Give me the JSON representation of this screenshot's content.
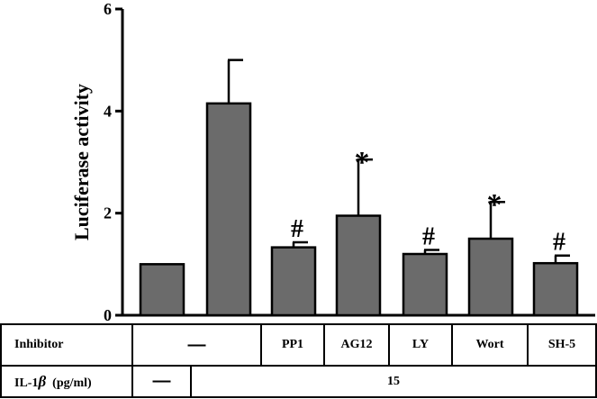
{
  "chart_data": {
    "type": "bar",
    "ylabel": "Luciferase activity",
    "ylim": [
      0,
      6
    ],
    "yticks": [
      "0",
      "2",
      "4",
      "6"
    ],
    "grid": false,
    "values": [
      1.0,
      4.15,
      1.33,
      1.95,
      1.2,
      1.5,
      1.02
    ],
    "errors": [
      0,
      0.85,
      0.1,
      1.1,
      0.08,
      0.72,
      0.15
    ],
    "annotations": [
      "",
      "",
      "#",
      "*",
      "#",
      "*",
      "#"
    ]
  },
  "table": {
    "row1_label": "Inhibitor",
    "row2_label_prefix": "IL-1",
    "row2_label_beta": "β",
    "row2_label_suffix": "(pg/ml)",
    "inhibitors": [
      "—",
      "PP1",
      "AG12",
      "LY",
      "Wort",
      "SH-5"
    ],
    "il1b_none": "—",
    "il1b_dose": "15"
  }
}
